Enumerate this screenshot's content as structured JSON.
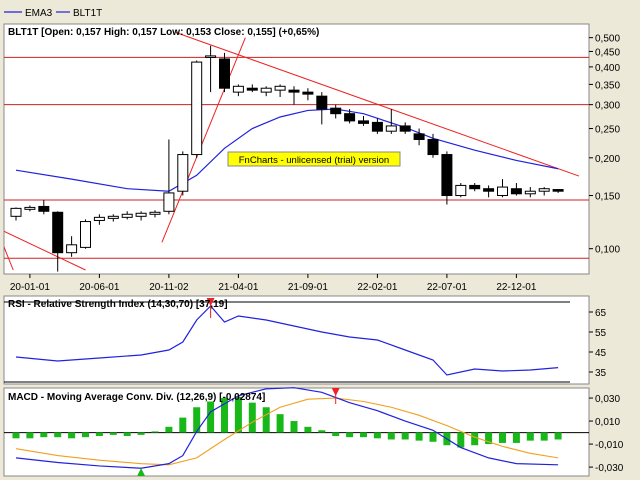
{
  "legend": {
    "items": [
      {
        "label": "EMA3",
        "color": "#2222dd"
      },
      {
        "label": "BLT1T",
        "color": "#2222dd"
      }
    ]
  },
  "watermark": "FnCharts - unlicensed (trial) version",
  "colors": {
    "background": "#ece9d8",
    "panel": "#ffffff",
    "ema": "#2222dd",
    "trendline": "#ee2222",
    "hline": "#cc2222",
    "candle_up": "#ffffff",
    "candle_down": "#000000",
    "macd_signal": "#f0a020",
    "histogram": "#18b818",
    "watermark_bg": "#ffff00"
  },
  "chart_data": [
    {
      "type": "candlestick",
      "title": "BLT1T [Open: 0,157  High: 0,157  Low: 0,153  Close: 0,155] (+0,65%)",
      "scale": "log",
      "ylim": [
        0.085,
        0.53
      ],
      "y_ticks": [
        {
          "value": 0.5,
          "label": "0,500"
        },
        {
          "value": 0.45,
          "label": "0,450"
        },
        {
          "value": 0.4,
          "label": "0,400"
        },
        {
          "value": 0.35,
          "label": "0,350"
        },
        {
          "value": 0.3,
          "label": "0,300"
        },
        {
          "value": 0.25,
          "label": "0,250"
        },
        {
          "value": 0.2,
          "label": "0,200"
        },
        {
          "value": 0.15,
          "label": "0,150"
        },
        {
          "value": 0.1,
          "label": "0,100"
        }
      ],
      "x_ticks": [
        {
          "index": 1,
          "label": "20-01-01"
        },
        {
          "index": 6,
          "label": "20-06-01"
        },
        {
          "index": 11,
          "label": "20-11-02"
        },
        {
          "index": 16,
          "label": "21-04-01"
        },
        {
          "index": 21,
          "label": "21-09-01"
        },
        {
          "index": 26,
          "label": "22-02-01"
        },
        {
          "index": 31,
          "label": "22-07-01"
        },
        {
          "index": 36,
          "label": "22-12-01"
        }
      ],
      "candles": [
        {
          "o": 0.128,
          "h": 0.137,
          "l": 0.124,
          "c": 0.136
        },
        {
          "o": 0.135,
          "h": 0.139,
          "l": 0.133,
          "c": 0.137
        },
        {
          "o": 0.138,
          "h": 0.145,
          "l": 0.13,
          "c": 0.133
        },
        {
          "o": 0.132,
          "h": 0.133,
          "l": 0.084,
          "c": 0.097
        },
        {
          "o": 0.097,
          "h": 0.11,
          "l": 0.094,
          "c": 0.103
        },
        {
          "o": 0.101,
          "h": 0.125,
          "l": 0.1,
          "c": 0.123
        },
        {
          "o": 0.124,
          "h": 0.13,
          "l": 0.12,
          "c": 0.127
        },
        {
          "o": 0.126,
          "h": 0.13,
          "l": 0.123,
          "c": 0.128
        },
        {
          "o": 0.127,
          "h": 0.133,
          "l": 0.125,
          "c": 0.13
        },
        {
          "o": 0.128,
          "h": 0.133,
          "l": 0.124,
          "c": 0.131
        },
        {
          "o": 0.13,
          "h": 0.134,
          "l": 0.127,
          "c": 0.132
        },
        {
          "o": 0.133,
          "h": 0.23,
          "l": 0.13,
          "c": 0.153
        },
        {
          "o": 0.155,
          "h": 0.21,
          "l": 0.15,
          "c": 0.205
        },
        {
          "o": 0.205,
          "h": 0.42,
          "l": 0.2,
          "c": 0.415
        },
        {
          "o": 0.43,
          "h": 0.47,
          "l": 0.33,
          "c": 0.435
        },
        {
          "o": 0.425,
          "h": 0.445,
          "l": 0.33,
          "c": 0.34
        },
        {
          "o": 0.33,
          "h": 0.35,
          "l": 0.32,
          "c": 0.345
        },
        {
          "o": 0.34,
          "h": 0.35,
          "l": 0.33,
          "c": 0.335
        },
        {
          "o": 0.33,
          "h": 0.345,
          "l": 0.32,
          "c": 0.34
        },
        {
          "o": 0.335,
          "h": 0.35,
          "l": 0.318,
          "c": 0.345
        },
        {
          "o": 0.335,
          "h": 0.345,
          "l": 0.3,
          "c": 0.33
        },
        {
          "o": 0.33,
          "h": 0.34,
          "l": 0.31,
          "c": 0.325
        },
        {
          "o": 0.32,
          "h": 0.33,
          "l": 0.258,
          "c": 0.29
        },
        {
          "o": 0.292,
          "h": 0.3,
          "l": 0.27,
          "c": 0.28
        },
        {
          "o": 0.28,
          "h": 0.29,
          "l": 0.26,
          "c": 0.265
        },
        {
          "o": 0.265,
          "h": 0.275,
          "l": 0.255,
          "c": 0.26
        },
        {
          "o": 0.262,
          "h": 0.27,
          "l": 0.24,
          "c": 0.245
        },
        {
          "o": 0.245,
          "h": 0.29,
          "l": 0.24,
          "c": 0.255
        },
        {
          "o": 0.255,
          "h": 0.262,
          "l": 0.24,
          "c": 0.245
        },
        {
          "o": 0.24,
          "h": 0.25,
          "l": 0.22,
          "c": 0.23
        },
        {
          "o": 0.23,
          "h": 0.24,
          "l": 0.2,
          "c": 0.205
        },
        {
          "o": 0.205,
          "h": 0.21,
          "l": 0.14,
          "c": 0.15
        },
        {
          "o": 0.15,
          "h": 0.165,
          "l": 0.148,
          "c": 0.162
        },
        {
          "o": 0.162,
          "h": 0.165,
          "l": 0.155,
          "c": 0.158
        },
        {
          "o": 0.158,
          "h": 0.162,
          "l": 0.148,
          "c": 0.155
        },
        {
          "o": 0.15,
          "h": 0.17,
          "l": 0.148,
          "c": 0.16
        },
        {
          "o": 0.158,
          "h": 0.165,
          "l": 0.15,
          "c": 0.152
        },
        {
          "o": 0.152,
          "h": 0.16,
          "l": 0.148,
          "c": 0.155
        },
        {
          "o": 0.155,
          "h": 0.16,
          "l": 0.15,
          "c": 0.158
        },
        {
          "o": 0.157,
          "h": 0.157,
          "l": 0.153,
          "c": 0.155
        }
      ],
      "ema": [
        {
          "i": 0,
          "v": 0.182
        },
        {
          "i": 4,
          "v": 0.17
        },
        {
          "i": 8,
          "v": 0.158
        },
        {
          "i": 11,
          "v": 0.155
        },
        {
          "i": 13,
          "v": 0.175
        },
        {
          "i": 15,
          "v": 0.215
        },
        {
          "i": 17,
          "v": 0.25
        },
        {
          "i": 19,
          "v": 0.273
        },
        {
          "i": 21,
          "v": 0.287
        },
        {
          "i": 23,
          "v": 0.29
        },
        {
          "i": 25,
          "v": 0.28
        },
        {
          "i": 28,
          "v": 0.252
        },
        {
          "i": 30,
          "v": 0.232
        },
        {
          "i": 33,
          "v": 0.212
        },
        {
          "i": 36,
          "v": 0.196
        },
        {
          "i": 39,
          "v": 0.184
        }
      ],
      "horizontal_lines": [
        0.43,
        0.3,
        0.145,
        0.093
      ],
      "trend_lines": [
        {
          "from": [
            -1,
            0.115
          ],
          "to": [
            5,
            0.085
          ]
        },
        {
          "from": [
            -1,
            0.105
          ],
          "to": [
            -0.2,
            0.085
          ]
        },
        {
          "from": [
            10.5,
            0.105
          ],
          "to": [
            16.5,
            0.5
          ]
        },
        {
          "from": [
            11.5,
            0.52
          ],
          "to": [
            40.5,
            0.174
          ]
        }
      ]
    },
    {
      "type": "line",
      "title": "RSI - Relative Strength Index (14,30,70) [37,19]",
      "ylim": [
        30,
        72
      ],
      "y_ticks": [
        {
          "value": 65,
          "label": "65"
        },
        {
          "value": 55,
          "label": "55"
        },
        {
          "value": 45,
          "label": "45"
        },
        {
          "value": 35,
          "label": "35"
        }
      ],
      "levels": [
        70,
        30
      ],
      "series": [
        {
          "values": [
            {
              "i": 0,
              "v": 42.5
            },
            {
              "i": 3,
              "v": 40.5
            },
            {
              "i": 6,
              "v": 42.0
            },
            {
              "i": 9,
              "v": 43.5
            },
            {
              "i": 11,
              "v": 46.0
            },
            {
              "i": 12,
              "v": 50.0
            },
            {
              "i": 13,
              "v": 61.0
            },
            {
              "i": 14,
              "v": 68.0
            },
            {
              "i": 15,
              "v": 60.0
            },
            {
              "i": 16,
              "v": 63.0
            },
            {
              "i": 18,
              "v": 61.0
            },
            {
              "i": 20,
              "v": 58.0
            },
            {
              "i": 22,
              "v": 55.0
            },
            {
              "i": 24,
              "v": 52.5
            },
            {
              "i": 26,
              "v": 51.0
            },
            {
              "i": 28,
              "v": 46.0
            },
            {
              "i": 30,
              "v": 41.0
            },
            {
              "i": 31,
              "v": 33.5
            },
            {
              "i": 33,
              "v": 36.5
            },
            {
              "i": 35,
              "v": 35.5
            },
            {
              "i": 37,
              "v": 36.0
            },
            {
              "i": 39,
              "v": 37.2
            }
          ]
        }
      ],
      "marker": {
        "index": 14,
        "direction": "down"
      }
    },
    {
      "type": "line",
      "title": "MACD - Moving Average Conv. Div. (12,26,9) [-0,02874]",
      "ylim": [
        -0.036,
        0.037
      ],
      "y_ticks": [
        {
          "value": 0.03,
          "label": "0,030"
        },
        {
          "value": 0.01,
          "label": "0,010"
        },
        {
          "value": -0.01,
          "label": "-0,010"
        },
        {
          "value": -0.03,
          "label": "-0,030"
        }
      ],
      "zero_line": 0.0,
      "macd": [
        {
          "i": 0,
          "v": -0.022
        },
        {
          "i": 3,
          "v": -0.026
        },
        {
          "i": 6,
          "v": -0.029
        },
        {
          "i": 9,
          "v": -0.031
        },
        {
          "i": 11,
          "v": -0.027
        },
        {
          "i": 12,
          "v": -0.02
        },
        {
          "i": 13,
          "v": 0.001
        },
        {
          "i": 14,
          "v": 0.018
        },
        {
          "i": 16,
          "v": 0.032
        },
        {
          "i": 18,
          "v": 0.038
        },
        {
          "i": 20,
          "v": 0.039
        },
        {
          "i": 22,
          "v": 0.035
        },
        {
          "i": 24,
          "v": 0.026
        },
        {
          "i": 26,
          "v": 0.019
        },
        {
          "i": 28,
          "v": 0.01
        },
        {
          "i": 30,
          "v": 0.002
        },
        {
          "i": 32,
          "v": -0.013
        },
        {
          "i": 34,
          "v": -0.022
        },
        {
          "i": 36,
          "v": -0.027
        },
        {
          "i": 39,
          "v": -0.028
        }
      ],
      "signal": [
        {
          "i": 0,
          "v": -0.014
        },
        {
          "i": 3,
          "v": -0.02
        },
        {
          "i": 6,
          "v": -0.024
        },
        {
          "i": 9,
          "v": -0.027
        },
        {
          "i": 11,
          "v": -0.028
        },
        {
          "i": 13,
          "v": -0.022
        },
        {
          "i": 15,
          "v": -0.006
        },
        {
          "i": 17,
          "v": 0.009
        },
        {
          "i": 19,
          "v": 0.022
        },
        {
          "i": 21,
          "v": 0.029
        },
        {
          "i": 23,
          "v": 0.03
        },
        {
          "i": 25,
          "v": 0.027
        },
        {
          "i": 27,
          "v": 0.022
        },
        {
          "i": 29,
          "v": 0.015
        },
        {
          "i": 31,
          "v": 0.006
        },
        {
          "i": 33,
          "v": -0.004
        },
        {
          "i": 35,
          "v": -0.012
        },
        {
          "i": 37,
          "v": -0.018
        },
        {
          "i": 39,
          "v": -0.022
        }
      ],
      "histogram": [
        -0.005,
        -0.005,
        -0.004,
        -0.004,
        -0.005,
        -0.004,
        -0.003,
        -0.002,
        -0.003,
        -0.002,
        0.001,
        0.005,
        0.013,
        0.022,
        0.027,
        0.03,
        0.031,
        0.026,
        0.022,
        0.016,
        0.01,
        0.005,
        0.002,
        -0.003,
        -0.004,
        -0.004,
        -0.005,
        -0.006,
        -0.006,
        -0.007,
        -0.008,
        -0.011,
        -0.013,
        -0.011,
        -0.01,
        -0.009,
        -0.009,
        -0.007,
        -0.007,
        -0.006
      ],
      "markers": [
        {
          "index": 23,
          "direction": "down",
          "color": "#ee2222"
        },
        {
          "index": 9,
          "direction": "up",
          "color": "#18b818"
        }
      ]
    }
  ]
}
